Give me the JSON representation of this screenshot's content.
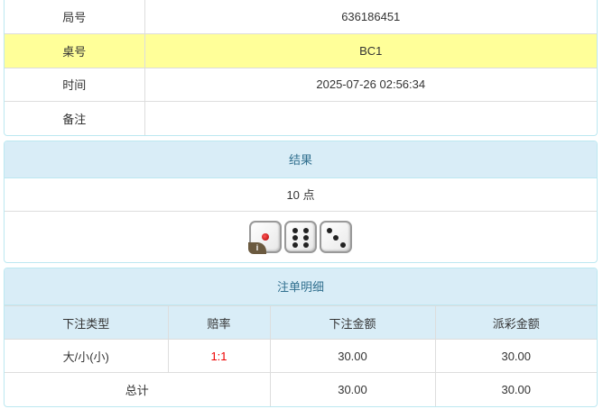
{
  "info": [
    {
      "label": "局号",
      "value": "636186451"
    },
    {
      "label": "桌号",
      "value": "BC1"
    },
    {
      "label": "时间",
      "value": "2025-07-26 02:56:34"
    },
    {
      "label": "备注",
      "value": ""
    }
  ],
  "result": {
    "title": "结果",
    "points": "10 点",
    "dice": [
      1,
      6,
      3
    ],
    "info_badge": "i"
  },
  "bets": {
    "title": "注单明细",
    "columns": [
      "下注类型",
      "赔率",
      "下注金额",
      "派彩金额"
    ],
    "rows": [
      {
        "type": "大/小(小)",
        "odds": "1:1",
        "amount": "30.00",
        "payout": "30.00"
      }
    ],
    "total": {
      "label": "总计",
      "amount": "30.00",
      "payout": "30.00"
    }
  },
  "colors": {
    "highlight": "#ffff99",
    "panel_header": "#d9edf7",
    "odds": "#ee0000"
  }
}
